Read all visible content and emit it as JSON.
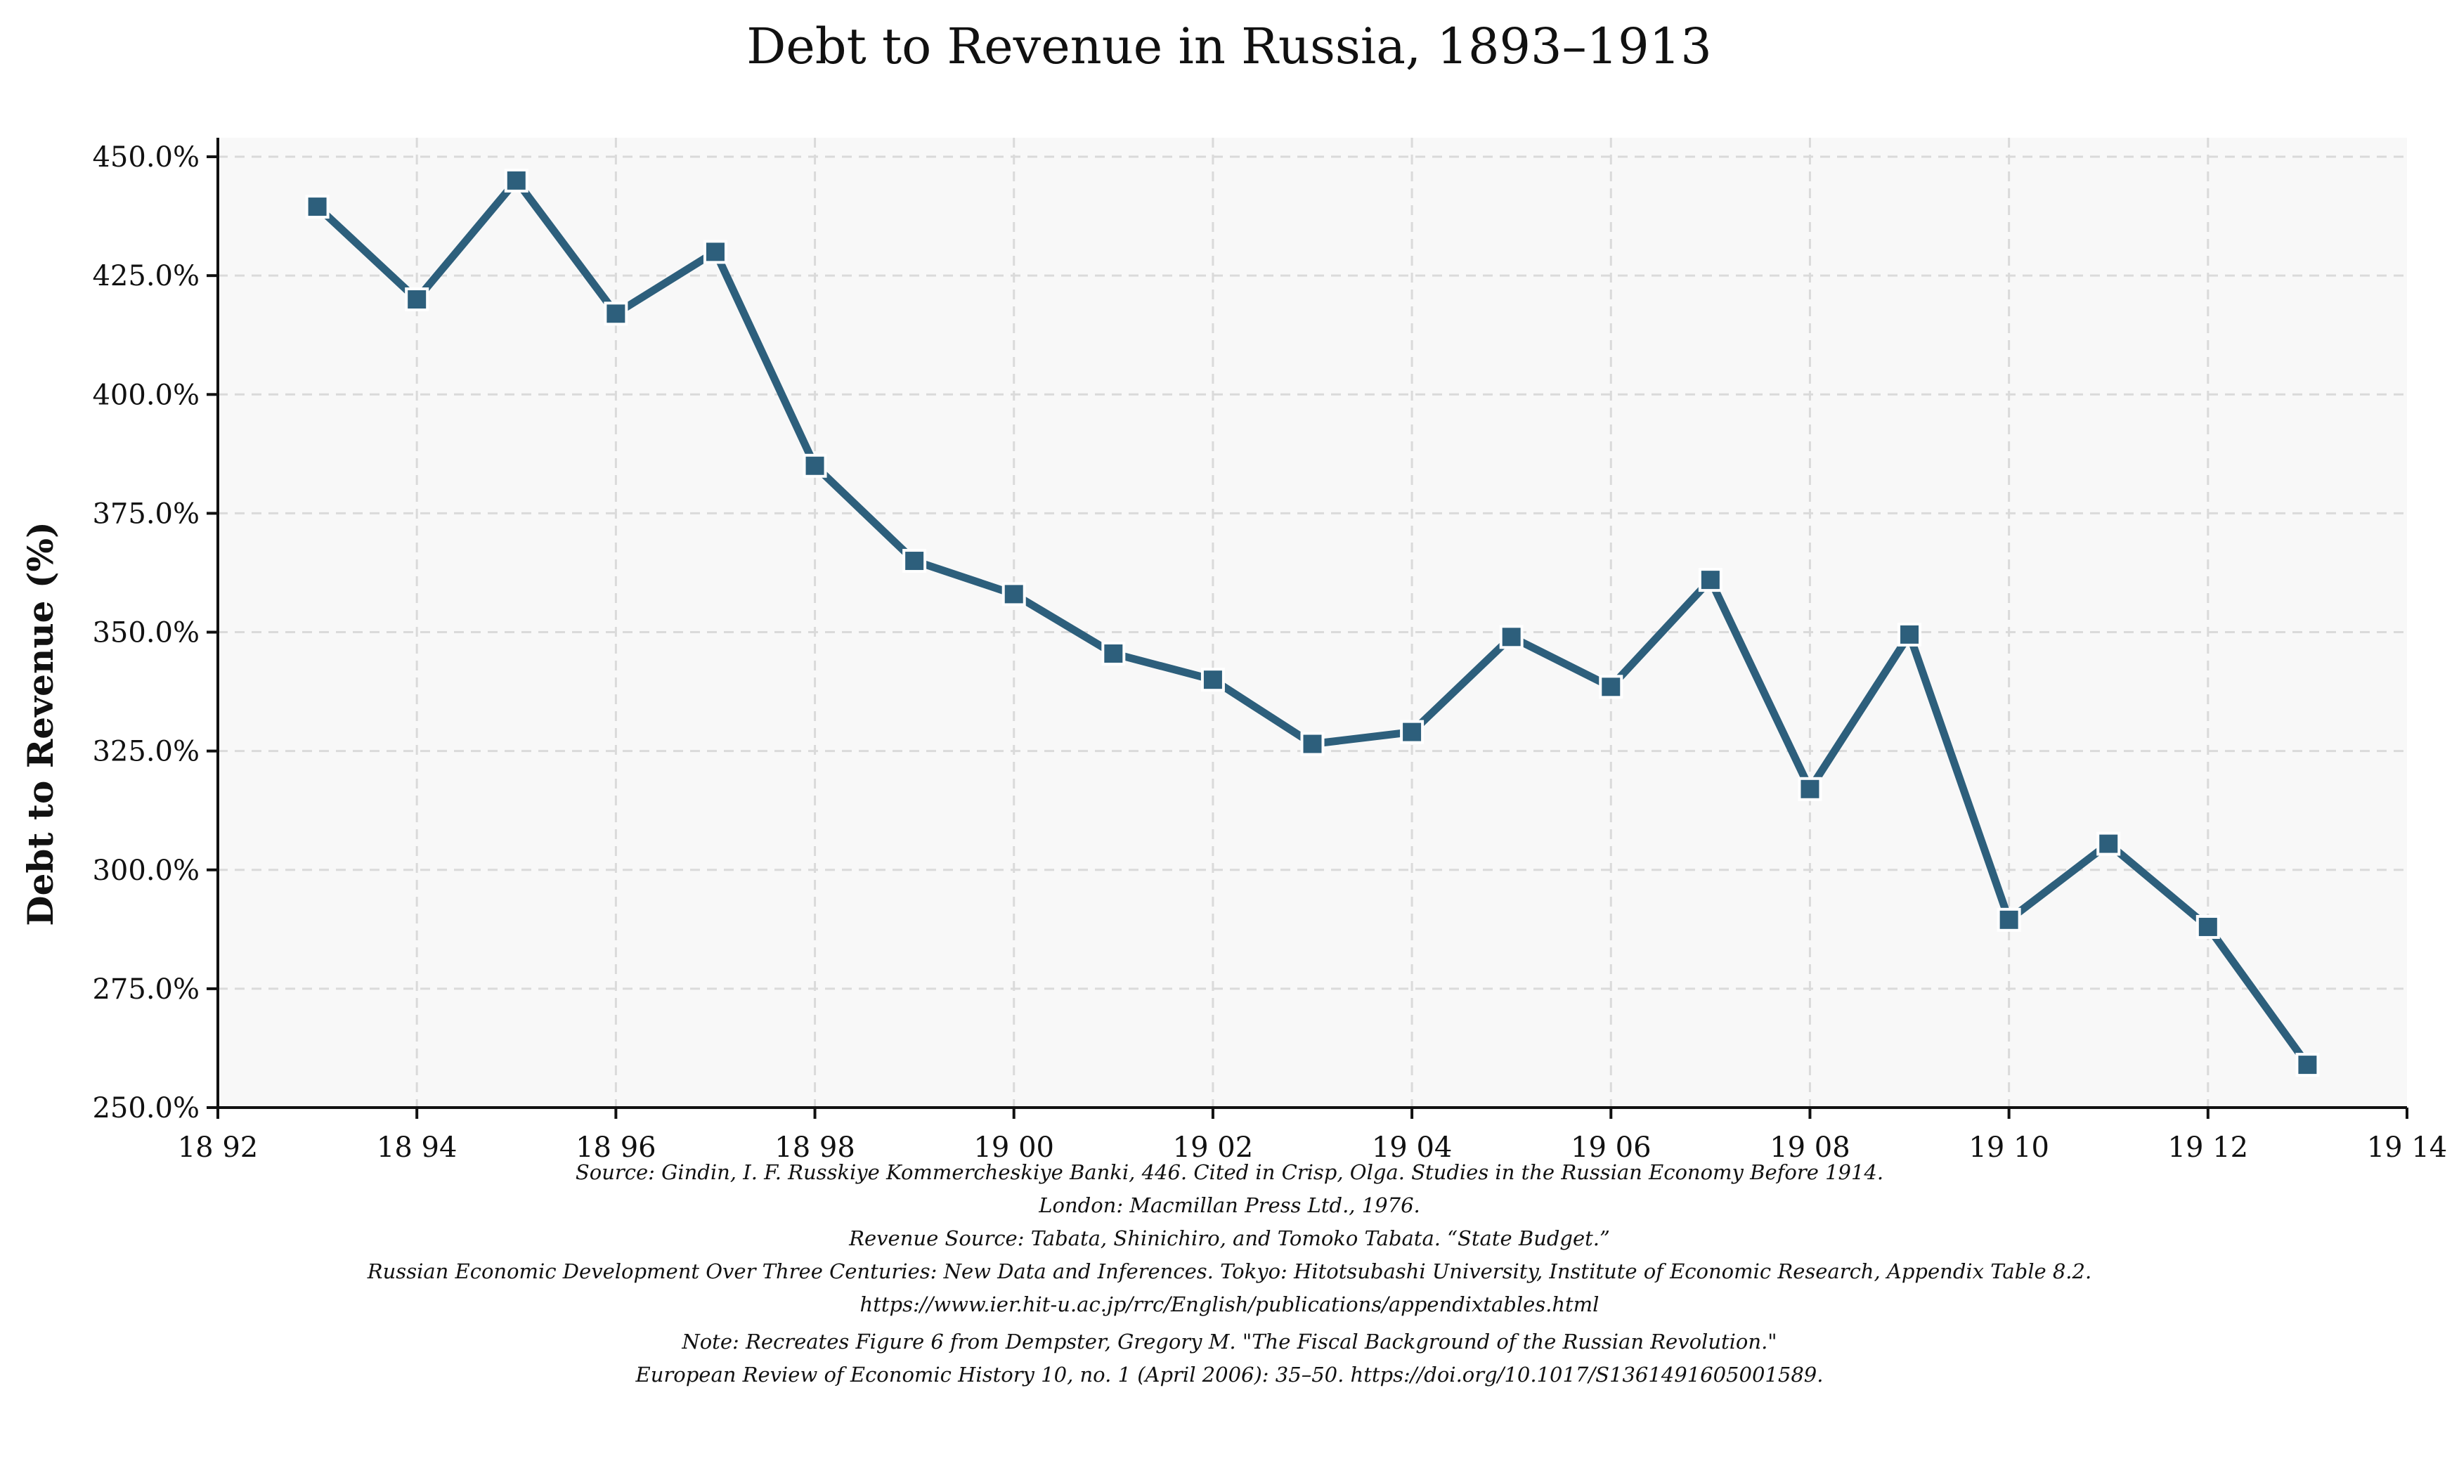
{
  "chart_data": {
    "type": "line",
    "title": "Debt to Revenue in Russia, 1893–1913",
    "xlabel": "",
    "ylabel": "Debt to Revenue (%)",
    "xlim": [
      1892,
      1914
    ],
    "ylim": [
      250,
      454
    ],
    "x_ticks": [
      1892,
      1894,
      1896,
      1898,
      1900,
      1902,
      1904,
      1906,
      1908,
      1910,
      1912,
      1914
    ],
    "x_tick_labels": [
      "18 92",
      "18 94",
      "18 96",
      "18 98",
      "19 00",
      "19 02",
      "19 04",
      "19 06",
      "19 08",
      "19 10",
      "19 12",
      "19 14"
    ],
    "y_ticks": [
      250,
      275,
      300,
      325,
      350,
      375,
      400,
      425,
      450
    ],
    "y_tick_labels": [
      "250.0%",
      "275.0%",
      "300.0%",
      "325.0%",
      "350.0%",
      "375.0%",
      "400.0%",
      "425.0%",
      "450.0%"
    ],
    "grid": true,
    "series": [
      {
        "name": "Debt to Revenue",
        "color": "#2d5f7c",
        "x": [
          1893,
          1894,
          1895,
          1896,
          1897,
          1898,
          1899,
          1900,
          1901,
          1902,
          1903,
          1904,
          1905,
          1906,
          1907,
          1908,
          1909,
          1910,
          1911,
          1912,
          1913
        ],
        "values": [
          439.5,
          420,
          445,
          417,
          430,
          385,
          365,
          358,
          345.5,
          340,
          326.5,
          329,
          349,
          338.5,
          361,
          317,
          349.5,
          289.5,
          305.5,
          288,
          259
        ]
      }
    ]
  },
  "notes": {
    "line1": "Source: Gindin, I. F. Russkiye Kommercheskiye Banki, 446. Cited in Crisp, Olga. Studies in the Russian Economy Before 1914.",
    "line2": "London: Macmillan Press Ltd., 1976.",
    "line3": "Revenue Source: Tabata, Shinichiro, and Tomoko Tabata. “State Budget.”",
    "line4": "Russian Economic Development Over Three Centuries: New Data and Inferences. Tokyo: Hitotsubashi University, Institute of Economic Research, Appendix Table 8.2.",
    "line5": "https://www.ier.hit-u.ac.jp/rrc/English/publications/appendixtables.html",
    "line6": "Note: Recreates Figure 6 from Dempster, Gregory M. \"The Fiscal Background of the Russian Revolution.\"",
    "line7": "European Review of Economic History 10, no. 1 (April 2006): 35–50. https://doi.org/10.1017/S1361491605001589."
  }
}
